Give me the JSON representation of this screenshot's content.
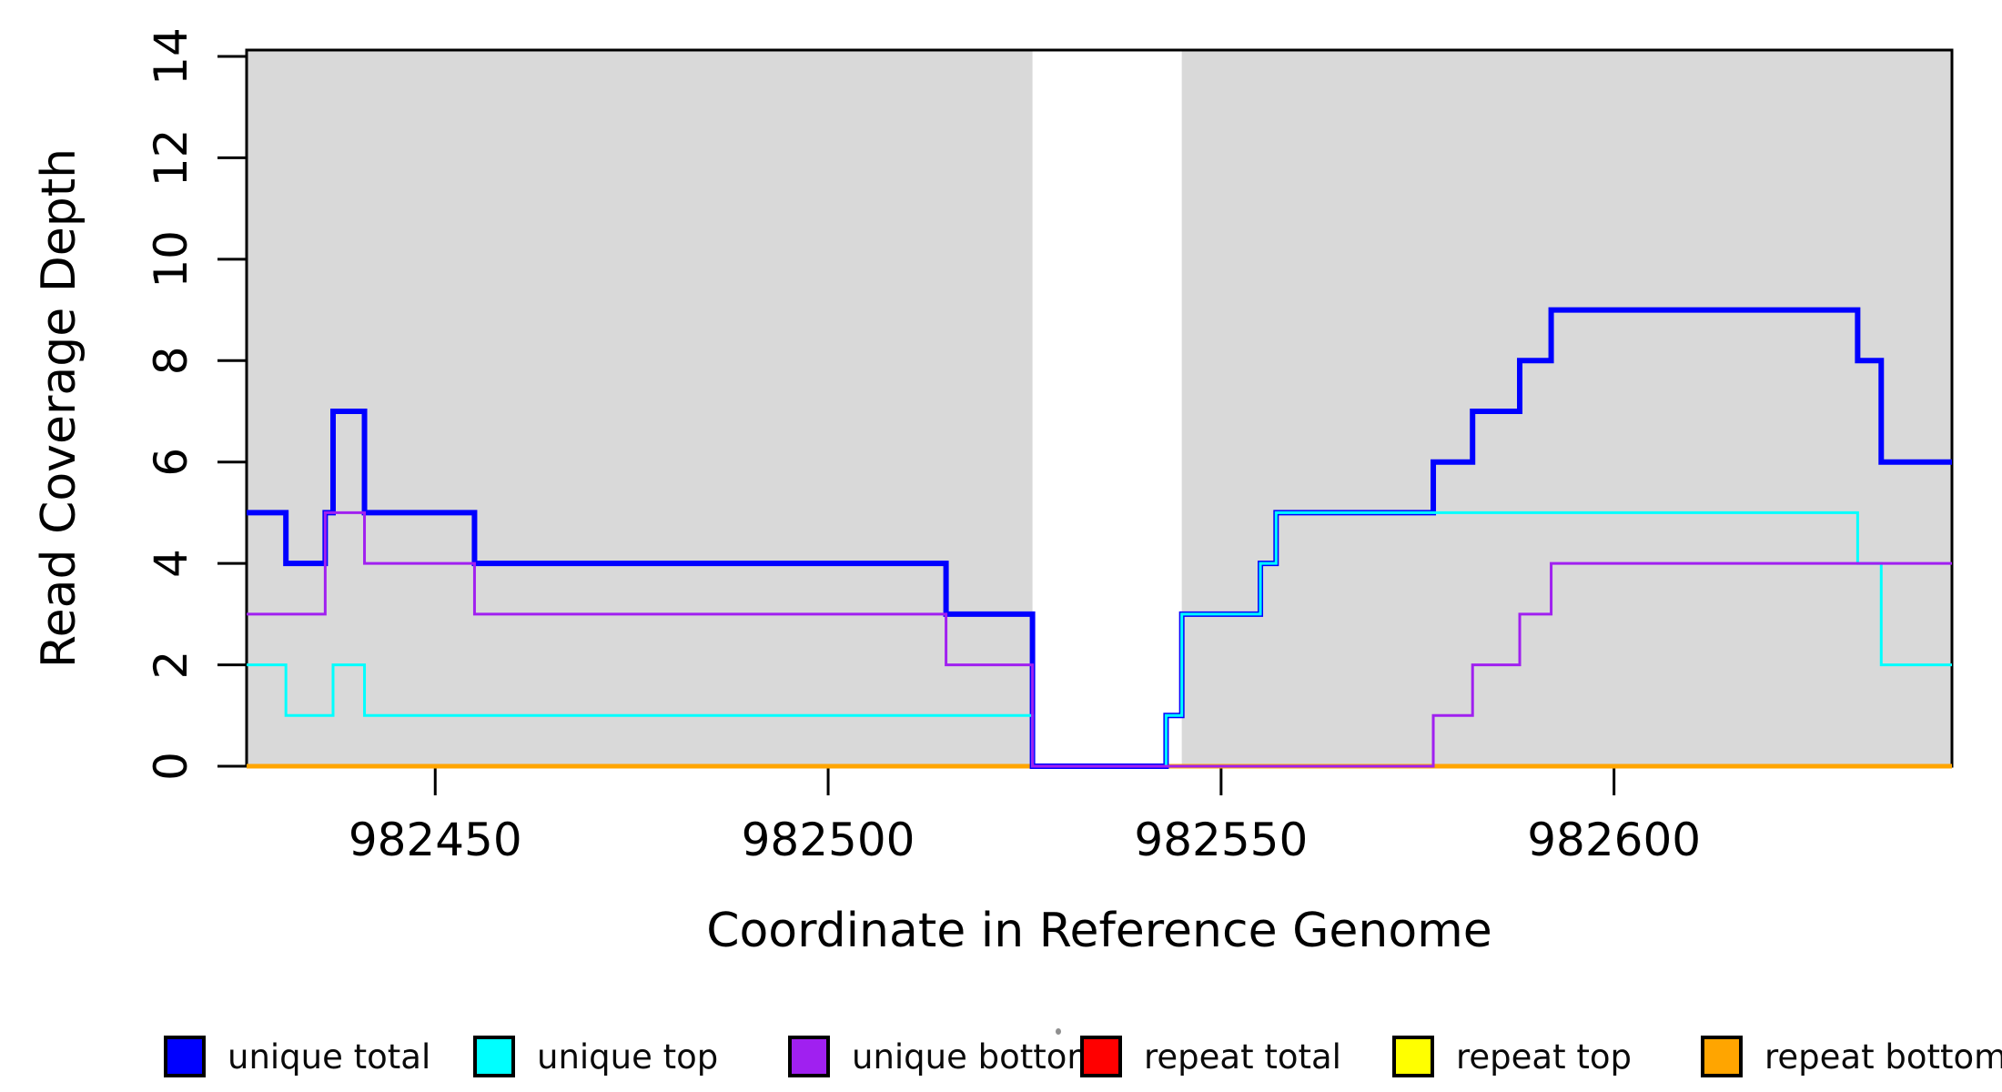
{
  "figure": {
    "xlabel": "Coordinate in Reference Genome",
    "ylabel": "Read Coverage Depth"
  },
  "chart_data": {
    "type": "line",
    "subtype": "step-coverage",
    "title": "",
    "xlabel": "Coordinate in Reference Genome",
    "ylabel": "Read Coverage Depth",
    "xlim": [
      982426,
      982643
    ],
    "ylim": [
      0,
      14
    ],
    "x_ticks": [
      982450,
      982500,
      982550,
      982600
    ],
    "y_ticks": [
      0,
      2,
      4,
      6,
      8,
      10,
      12,
      14
    ],
    "grid": false,
    "legend_position": "bottom",
    "shaded_regions": [
      {
        "name": "mask-left",
        "x0": 982426,
        "x1": 982526,
        "color": "#d9d9d9"
      },
      {
        "name": "mask-right",
        "x0": 982545,
        "x1": 982643,
        "color": "#d9d9d9"
      }
    ],
    "series": [
      {
        "name": "unique total",
        "color": "#0000ff",
        "lwd": 6,
        "steps": [
          [
            982426,
            5
          ],
          [
            982431,
            4
          ],
          [
            982436,
            5
          ],
          [
            982437,
            7
          ],
          [
            982441,
            5
          ],
          [
            982455,
            4
          ],
          [
            982515,
            3
          ],
          [
            982526,
            0
          ],
          [
            982543,
            1
          ],
          [
            982545,
            3
          ],
          [
            982555,
            4
          ],
          [
            982557,
            5
          ],
          [
            982577,
            6
          ],
          [
            982582,
            7
          ],
          [
            982588,
            8
          ],
          [
            982592,
            9
          ],
          [
            982631,
            8
          ],
          [
            982634,
            6
          ]
        ]
      },
      {
        "name": "unique top",
        "color": "#00ffff",
        "lwd": 3,
        "steps": [
          [
            982426,
            2
          ],
          [
            982431,
            1
          ],
          [
            982437,
            2
          ],
          [
            982441,
            1
          ],
          [
            982526,
            0
          ],
          [
            982543,
            1
          ],
          [
            982545,
            3
          ],
          [
            982555,
            4
          ],
          [
            982557,
            5
          ],
          [
            982631,
            4
          ],
          [
            982634,
            2
          ]
        ]
      },
      {
        "name": "unique bottom",
        "color": "#a020f0",
        "lwd": 3,
        "steps": [
          [
            982426,
            3
          ],
          [
            982436,
            5
          ],
          [
            982441,
            4
          ],
          [
            982455,
            3
          ],
          [
            982515,
            2
          ],
          [
            982526,
            0
          ],
          [
            982577,
            1
          ],
          [
            982582,
            2
          ],
          [
            982588,
            3
          ],
          [
            982592,
            4
          ]
        ]
      },
      {
        "name": "repeat total",
        "color": "#ff0000",
        "lwd": 4,
        "steps": [
          [
            982426,
            0
          ]
        ]
      },
      {
        "name": "repeat top",
        "color": "#ffff00",
        "lwd": 4,
        "steps": [
          [
            982426,
            0
          ]
        ]
      },
      {
        "name": "repeat bottom",
        "color": "#ffa500",
        "lwd": 5,
        "steps": [
          [
            982426,
            0
          ]
        ]
      }
    ],
    "draw_order": [
      "repeat total",
      "repeat top",
      "repeat bottom",
      "unique total",
      "unique top",
      "unique bottom"
    ]
  },
  "legend": {
    "items": [
      {
        "label": "unique total",
        "color": "#0000ff"
      },
      {
        "label": "unique top",
        "color": "#00ffff"
      },
      {
        "label": "unique bottom",
        "color": "#a020f0"
      },
      {
        "label": "repeat total",
        "color": "#ff0000"
      },
      {
        "label": "repeat top",
        "color": "#ffff00"
      },
      {
        "label": "repeat bottom",
        "color": "#ffa500"
      }
    ]
  },
  "annotations": {
    "stray_dot": {
      "present": true
    }
  }
}
